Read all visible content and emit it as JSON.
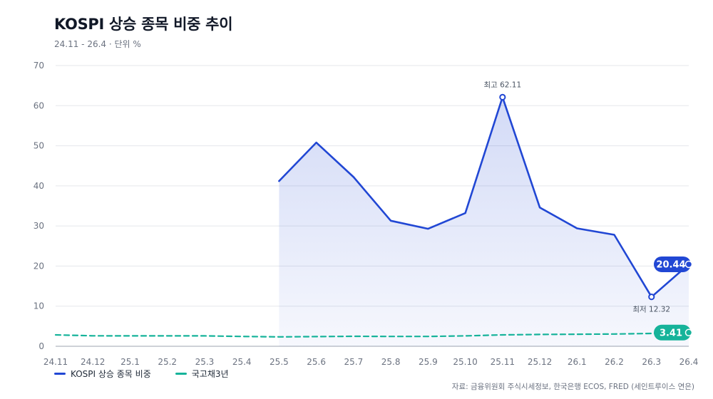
{
  "title": "KOSPI 상승 종목 비중 추이",
  "subtitle": "24.11 - 26.4 · 단위 %",
  "source": "자료: 금융위원회 주식시세정보, 한국은행 ECOS, FRED (세인트루이스 연은)",
  "colors": {
    "kospi": "#2147d4",
    "bond": "#16b39a",
    "grid": "#e5e7eb",
    "axis": "#9ca3af"
  },
  "chart_data": {
    "type": "line",
    "x": [
      "24.11",
      "24.12",
      "25.1",
      "25.2",
      "25.3",
      "25.4",
      "25.5",
      "25.6",
      "25.7",
      "25.8",
      "25.9",
      "25.10",
      "25.11",
      "25.12",
      "26.1",
      "26.2",
      "26.3",
      "26.4"
    ],
    "ylim": [
      0,
      70
    ],
    "yticks": [
      0,
      10,
      20,
      30,
      40,
      50,
      60,
      70
    ],
    "grid": true,
    "legend_position": "bottom-left",
    "series": [
      {
        "name": "KOSPI 상승 종목 비중",
        "style": "solid",
        "area": true,
        "values": [
          null,
          null,
          null,
          null,
          null,
          null,
          41.2,
          50.8,
          42.2,
          31.3,
          29.3,
          33.2,
          62.11,
          34.6,
          29.4,
          27.8,
          12.32,
          20.44
        ]
      },
      {
        "name": "국고채3년",
        "style": "dashed",
        "area": false,
        "values": [
          2.85,
          2.62,
          2.6,
          2.6,
          2.6,
          2.45,
          2.35,
          2.42,
          2.48,
          2.45,
          2.45,
          2.6,
          2.85,
          2.95,
          3.0,
          3.05,
          3.2,
          3.41
        ]
      }
    ],
    "annotations": [
      {
        "label": "최고 62.11",
        "series": 0,
        "x": "25.11",
        "y": 62.11,
        "position": "above"
      },
      {
        "label": "최저 12.32",
        "series": 0,
        "x": "26.3",
        "y": 12.32,
        "position": "below"
      }
    ],
    "end_labels": [
      "20.44",
      "3.41"
    ]
  }
}
